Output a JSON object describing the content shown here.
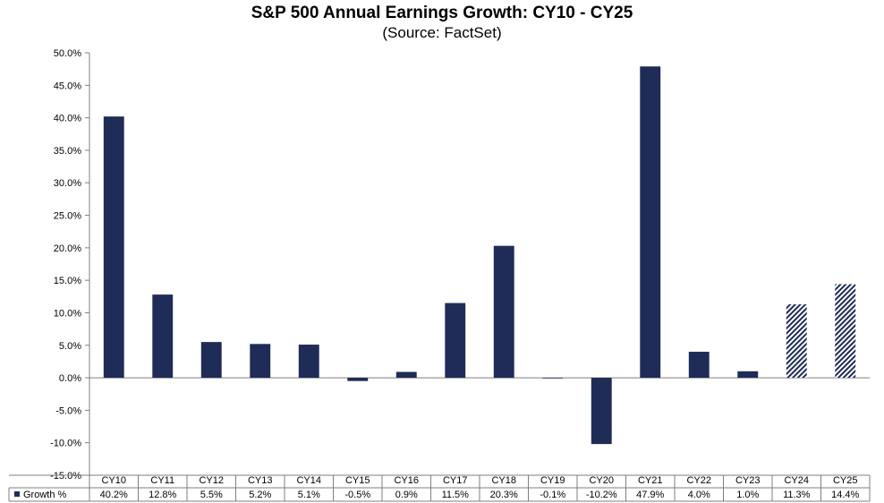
{
  "chart_data": {
    "type": "bar",
    "title": "S&P 500 Annual Earnings Growth: CY10 - CY25",
    "subtitle": "(Source: FactSet)",
    "categories": [
      "CY10",
      "CY11",
      "CY12",
      "CY13",
      "CY14",
      "CY15",
      "CY16",
      "CY17",
      "CY18",
      "CY19",
      "CY20",
      "CY21",
      "CY22",
      "CY23",
      "CY24",
      "CY25"
    ],
    "series": [
      {
        "name": "Growth %",
        "values": [
          40.2,
          12.8,
          5.5,
          5.2,
          5.1,
          -0.5,
          0.9,
          11.5,
          20.3,
          -0.1,
          -10.2,
          47.9,
          4.0,
          1.0,
          11.3,
          14.4
        ],
        "value_labels": [
          "40.2%",
          "12.8%",
          "5.5%",
          "5.2%",
          "5.1%",
          "-0.5%",
          "0.9%",
          "11.5%",
          "20.3%",
          "-0.1%",
          "-10.2%",
          "47.9%",
          "4.0%",
          "1.0%",
          "11.3%",
          "14.4%"
        ],
        "estimate_flags": [
          false,
          false,
          false,
          false,
          false,
          false,
          false,
          false,
          false,
          false,
          false,
          false,
          false,
          false,
          true,
          true
        ]
      }
    ],
    "ylim": [
      -15,
      50
    ],
    "yticks": [
      50,
      45,
      40,
      35,
      30,
      25,
      20,
      15,
      10,
      5,
      0,
      -5,
      -10,
      -15
    ],
    "ytick_labels": [
      "50.0%",
      "45.0%",
      "40.0%",
      "35.0%",
      "30.0%",
      "25.0%",
      "20.0%",
      "15.0%",
      "10.0%",
      "5.0%",
      "0.0%",
      "-5.0%",
      "-10.0%",
      "-15.0%"
    ],
    "xlabel": "",
    "ylabel": "",
    "grid": false,
    "legend": "data-table",
    "colors": {
      "bar": "#1f2c57",
      "estimate_stripe": "#1f2c57",
      "estimate_bg": "#ffffff",
      "axis": "#7f7f7f"
    }
  }
}
